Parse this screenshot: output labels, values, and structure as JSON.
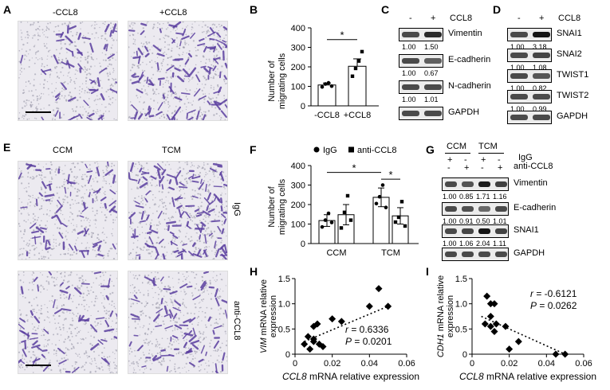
{
  "panel_letters": [
    "A",
    "B",
    "C",
    "D",
    "E",
    "F",
    "G",
    "H",
    "I"
  ],
  "panelA": {
    "labels": [
      "-CCL8",
      "+CCL8"
    ]
  },
  "panelE": {
    "cols": [
      "CCM",
      "TCM"
    ],
    "rows": [
      "IgG",
      "anti-CCL8"
    ]
  },
  "chart_data": [
    {
      "panel": "B",
      "type": "bar",
      "categories": [
        "-CCL8",
        "+CCL8"
      ],
      "values": [
        107,
        203
      ],
      "errors": [
        10,
        38
      ],
      "points": [
        [
          97,
          112,
          118,
          101
        ],
        [
          152,
          192,
          230,
          278
        ]
      ],
      "ylabel": "Number of migrating cells",
      "ylim": [
        0,
        400
      ],
      "yticks": [
        0,
        100,
        200,
        300,
        400
      ],
      "significance": "*"
    },
    {
      "panel": "F",
      "type": "bar",
      "categories": [
        "CCM",
        "TCM"
      ],
      "series": [
        {
          "name": "IgG",
          "marker": "circle",
          "values": [
            118,
            237
          ],
          "errors": [
            30,
            48
          ],
          "points": [
            [
              85,
              120,
              155,
              108
            ],
            [
              205,
              240,
              300,
              185
            ]
          ]
        },
        {
          "name": "anti-CCL8",
          "marker": "square",
          "values": [
            148,
            142
          ],
          "errors": [
            52,
            42
          ],
          "points": [
            [
              80,
              160,
              245,
              120
            ],
            [
              110,
              135,
              215,
              90
            ]
          ]
        }
      ],
      "ylabel": "Number of migrating cells",
      "ylim": [
        0,
        400
      ],
      "yticks": [
        0,
        100,
        200,
        300,
        400
      ],
      "significance": [
        "*",
        "*"
      ]
    },
    {
      "panel": "H",
      "type": "scatter",
      "x": [
        0.005,
        0.007,
        0.008,
        0.01,
        0.01,
        0.012,
        0.015,
        0.02,
        0.025,
        0.04,
        0.045,
        0.05,
        0.01,
        0.013
      ],
      "y": [
        0.2,
        0.35,
        0.1,
        0.25,
        0.55,
        0.6,
        0.15,
        0.7,
        0.65,
        0.95,
        1.3,
        0.95,
        0.3,
        0.2
      ],
      "xlabel_italic": "CCL8",
      "xlabel_rest": " mRNA relative expression",
      "ylabel_italic": "VIM",
      "ylabel_rest": " mRNA relative expression",
      "xlim": [
        0,
        0.06
      ],
      "xticks": [
        "0",
        "0.02",
        "0.04",
        "0.06"
      ],
      "ylim": [
        0,
        1.5
      ],
      "yticks": [
        "0",
        "0.5",
        "1.0",
        "1.5"
      ],
      "r_text": " = 0.6336",
      "p_text": " = 0.0201",
      "trend": [
        [
          0.005,
          0.25
        ],
        [
          0.05,
          0.95
        ]
      ]
    },
    {
      "panel": "I",
      "type": "scatter",
      "x": [
        0.008,
        0.01,
        0.012,
        0.01,
        0.013,
        0.01,
        0.007,
        0.012,
        0.018,
        0.02,
        0.025,
        0.045,
        0.05
      ],
      "y": [
        1.15,
        1.0,
        1.0,
        0.75,
        0.6,
        0.55,
        0.6,
        0.45,
        0.55,
        0.1,
        0.25,
        0.0,
        0.0
      ],
      "xlabel_italic": "CCL8",
      "xlabel_rest": " mRNA relative expression",
      "ylabel_italic": "CDH1",
      "ylabel_rest": " mRNA relative expression",
      "xlim": [
        0,
        0.06
      ],
      "xticks": [
        "0",
        "0.02",
        "0.04",
        "0.06"
      ],
      "ylim": [
        0,
        1.5
      ],
      "yticks": [
        "0",
        "0.5",
        "1.0",
        "1.5"
      ],
      "r_text": " = -0.6121",
      "p_text": " = 0.0262",
      "trend": [
        [
          0.005,
          0.75
        ],
        [
          0.05,
          0.0
        ]
      ]
    }
  ],
  "blotC": {
    "header": [
      "-",
      "+",
      "CCL8"
    ],
    "rows": [
      {
        "name": "Vimentin",
        "quant": [
          "1.00",
          "1.50"
        ]
      },
      {
        "name": "E-cadherin",
        "quant": [
          "1.00",
          "0.67"
        ]
      },
      {
        "name": "N-cadherin",
        "quant": [
          "1.00",
          "1.01"
        ]
      },
      {
        "name": "GAPDH",
        "quant": []
      }
    ]
  },
  "blotD": {
    "header": [
      "-",
      "+",
      "CCL8"
    ],
    "rows": [
      {
        "name": "SNAI1",
        "quant": [
          "1.00",
          "3.18"
        ]
      },
      {
        "name": "SNAI2",
        "quant": [
          "1.00",
          "1.08"
        ]
      },
      {
        "name": "TWIST1",
        "quant": [
          "1.00",
          "0.82"
        ]
      },
      {
        "name": "TWIST2",
        "quant": [
          "1.00",
          "0.99"
        ]
      },
      {
        "name": "GAPDH",
        "quant": []
      }
    ]
  },
  "blotG": {
    "groups": [
      "CCM",
      "TCM"
    ],
    "igg": [
      "+",
      "-",
      "+",
      "-"
    ],
    "anti": [
      "-",
      "+",
      "-",
      "+"
    ],
    "igg_label": "IgG",
    "anti_label": "anti-CCL8",
    "rows": [
      {
        "name": "Vimentin",
        "quant": [
          "1.00",
          "0.85",
          "1.71",
          "1.16"
        ]
      },
      {
        "name": "E-cadherin",
        "quant": [
          "1.00",
          "0.91",
          "0.50",
          "1.01"
        ]
      },
      {
        "name": "SNAI1",
        "quant": [
          "1.00",
          "1.06",
          "2.04",
          "1.11"
        ]
      },
      {
        "name": "GAPDH",
        "quant": []
      }
    ]
  }
}
